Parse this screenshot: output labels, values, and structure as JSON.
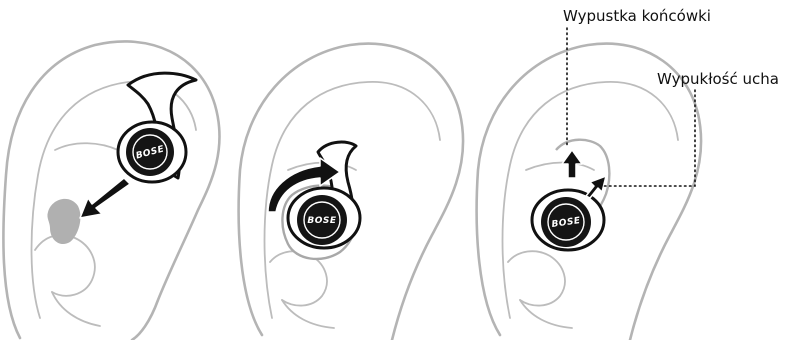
{
  "callouts": {
    "tip_label": "Wypustka końcówki",
    "ridge_label": "Wypukłość ucha"
  },
  "brand": {
    "logo_text": "BOSE"
  },
  "colors": {
    "ear_outline": "#b4b4b4",
    "earbud": "#151515",
    "arrow": "#111111"
  }
}
